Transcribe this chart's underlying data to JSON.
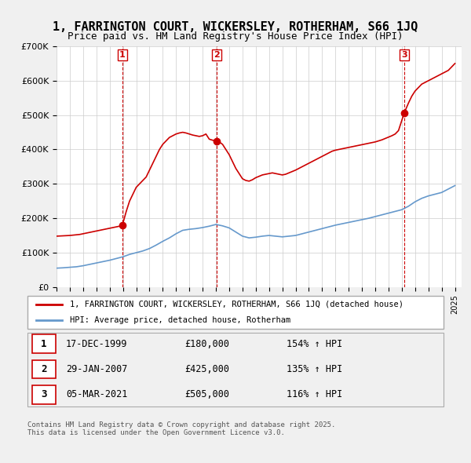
{
  "title": "1, FARRINGTON COURT, WICKERSLEY, ROTHERHAM, S66 1JQ",
  "subtitle": "Price paid vs. HM Land Registry's House Price Index (HPI)",
  "legend_label_red": "1, FARRINGTON COURT, WICKERSLEY, ROTHERHAM, S66 1JQ (detached house)",
  "legend_label_blue": "HPI: Average price, detached house, Rotherham",
  "footer": "Contains HM Land Registry data © Crown copyright and database right 2025.\nThis data is licensed under the Open Government Licence v3.0.",
  "purchases": [
    {
      "num": 1,
      "date": "17-DEC-1999",
      "price": 180000,
      "hpi_pct": "154%",
      "year": 1999.96
    },
    {
      "num": 2,
      "date": "29-JAN-2007",
      "price": 425000,
      "hpi_pct": "135%",
      "year": 2007.08
    },
    {
      "num": 3,
      "date": "05-MAR-2021",
      "price": 505000,
      "hpi_pct": "116%",
      "year": 2021.17
    }
  ],
  "red_color": "#cc0000",
  "blue_color": "#6699cc",
  "background_color": "#f0f0f0",
  "ylim": [
    0,
    700000
  ],
  "xlim_start": 1995.0,
  "xlim_end": 2025.5,
  "red_line_data": {
    "years": [
      1995.0,
      1995.25,
      1995.5,
      1995.75,
      1996.0,
      1996.25,
      1996.5,
      1996.75,
      1997.0,
      1997.25,
      1997.5,
      1997.75,
      1998.0,
      1998.25,
      1998.5,
      1998.75,
      1999.0,
      1999.25,
      1999.5,
      1999.75,
      1999.96,
      2000.25,
      2000.5,
      2000.75,
      2001.0,
      2001.25,
      2001.5,
      2001.75,
      2002.0,
      2002.25,
      2002.5,
      2002.75,
      2003.0,
      2003.25,
      2003.5,
      2003.75,
      2004.0,
      2004.25,
      2004.5,
      2004.75,
      2005.0,
      2005.25,
      2005.5,
      2005.75,
      2006.0,
      2006.25,
      2006.5,
      2006.75,
      2007.08,
      2007.25,
      2007.5,
      2007.75,
      2008.0,
      2008.25,
      2008.5,
      2008.75,
      2009.0,
      2009.25,
      2009.5,
      2009.75,
      2010.0,
      2010.25,
      2010.5,
      2010.75,
      2011.0,
      2011.25,
      2011.5,
      2011.75,
      2012.0,
      2012.25,
      2012.5,
      2012.75,
      2013.0,
      2013.25,
      2013.5,
      2013.75,
      2014.0,
      2014.25,
      2014.5,
      2014.75,
      2015.0,
      2015.25,
      2015.5,
      2015.75,
      2016.0,
      2016.25,
      2016.5,
      2016.75,
      2017.0,
      2017.25,
      2017.5,
      2017.75,
      2018.0,
      2018.25,
      2018.5,
      2018.75,
      2019.0,
      2019.25,
      2019.5,
      2019.75,
      2020.0,
      2020.25,
      2020.5,
      2020.75,
      2021.17,
      2021.5,
      2021.75,
      2022.0,
      2022.25,
      2022.5,
      2022.75,
      2023.0,
      2023.25,
      2023.5,
      2023.75,
      2024.0,
      2024.25,
      2024.5,
      2024.75,
      2025.0
    ],
    "values": [
      148000,
      148500,
      149000,
      149500,
      150000,
      151000,
      152000,
      153000,
      155000,
      157000,
      159000,
      161000,
      163000,
      165000,
      167000,
      169000,
      171000,
      173000,
      175000,
      177000,
      180000,
      220000,
      250000,
      270000,
      290000,
      300000,
      310000,
      320000,
      340000,
      360000,
      380000,
      400000,
      415000,
      425000,
      435000,
      440000,
      445000,
      448000,
      450000,
      448000,
      445000,
      442000,
      440000,
      438000,
      440000,
      445000,
      430000,
      427000,
      425000,
      422000,
      415000,
      400000,
      385000,
      365000,
      345000,
      330000,
      315000,
      310000,
      308000,
      312000,
      318000,
      322000,
      326000,
      328000,
      330000,
      332000,
      330000,
      328000,
      326000,
      328000,
      332000,
      336000,
      340000,
      345000,
      350000,
      355000,
      360000,
      365000,
      370000,
      375000,
      380000,
      385000,
      390000,
      395000,
      398000,
      400000,
      402000,
      404000,
      406000,
      408000,
      410000,
      412000,
      414000,
      416000,
      418000,
      420000,
      422000,
      425000,
      428000,
      432000,
      436000,
      440000,
      445000,
      455000,
      505000,
      535000,
      555000,
      570000,
      580000,
      590000,
      595000,
      600000,
      605000,
      610000,
      615000,
      620000,
      625000,
      630000,
      640000,
      650000
    ]
  },
  "blue_line_data": {
    "years": [
      1995.0,
      1995.5,
      1996.0,
      1996.5,
      1997.0,
      1997.5,
      1998.0,
      1998.5,
      1999.0,
      1999.5,
      2000.0,
      2000.5,
      2001.0,
      2001.5,
      2002.0,
      2002.5,
      2003.0,
      2003.5,
      2004.0,
      2004.5,
      2005.0,
      2005.5,
      2006.0,
      2006.5,
      2007.0,
      2007.5,
      2008.0,
      2008.5,
      2009.0,
      2009.5,
      2010.0,
      2010.5,
      2011.0,
      2011.5,
      2012.0,
      2012.5,
      2013.0,
      2013.5,
      2014.0,
      2014.5,
      2015.0,
      2015.5,
      2016.0,
      2016.5,
      2017.0,
      2017.5,
      2018.0,
      2018.5,
      2019.0,
      2019.5,
      2020.0,
      2020.5,
      2021.0,
      2021.5,
      2022.0,
      2022.5,
      2023.0,
      2023.5,
      2024.0,
      2024.5,
      2025.0
    ],
    "values": [
      55000,
      56000,
      57500,
      59000,
      62000,
      66000,
      70000,
      74000,
      78000,
      83000,
      88000,
      95000,
      100000,
      105000,
      112000,
      122000,
      133000,
      143000,
      155000,
      165000,
      168000,
      170000,
      173000,
      177000,
      182000,
      178000,
      172000,
      160000,
      148000,
      143000,
      145000,
      148000,
      150000,
      148000,
      146000,
      148000,
      150000,
      155000,
      160000,
      165000,
      170000,
      175000,
      180000,
      184000,
      188000,
      192000,
      196000,
      200000,
      205000,
      210000,
      215000,
      220000,
      225000,
      235000,
      248000,
      258000,
      265000,
      270000,
      275000,
      285000,
      295000
    ]
  }
}
